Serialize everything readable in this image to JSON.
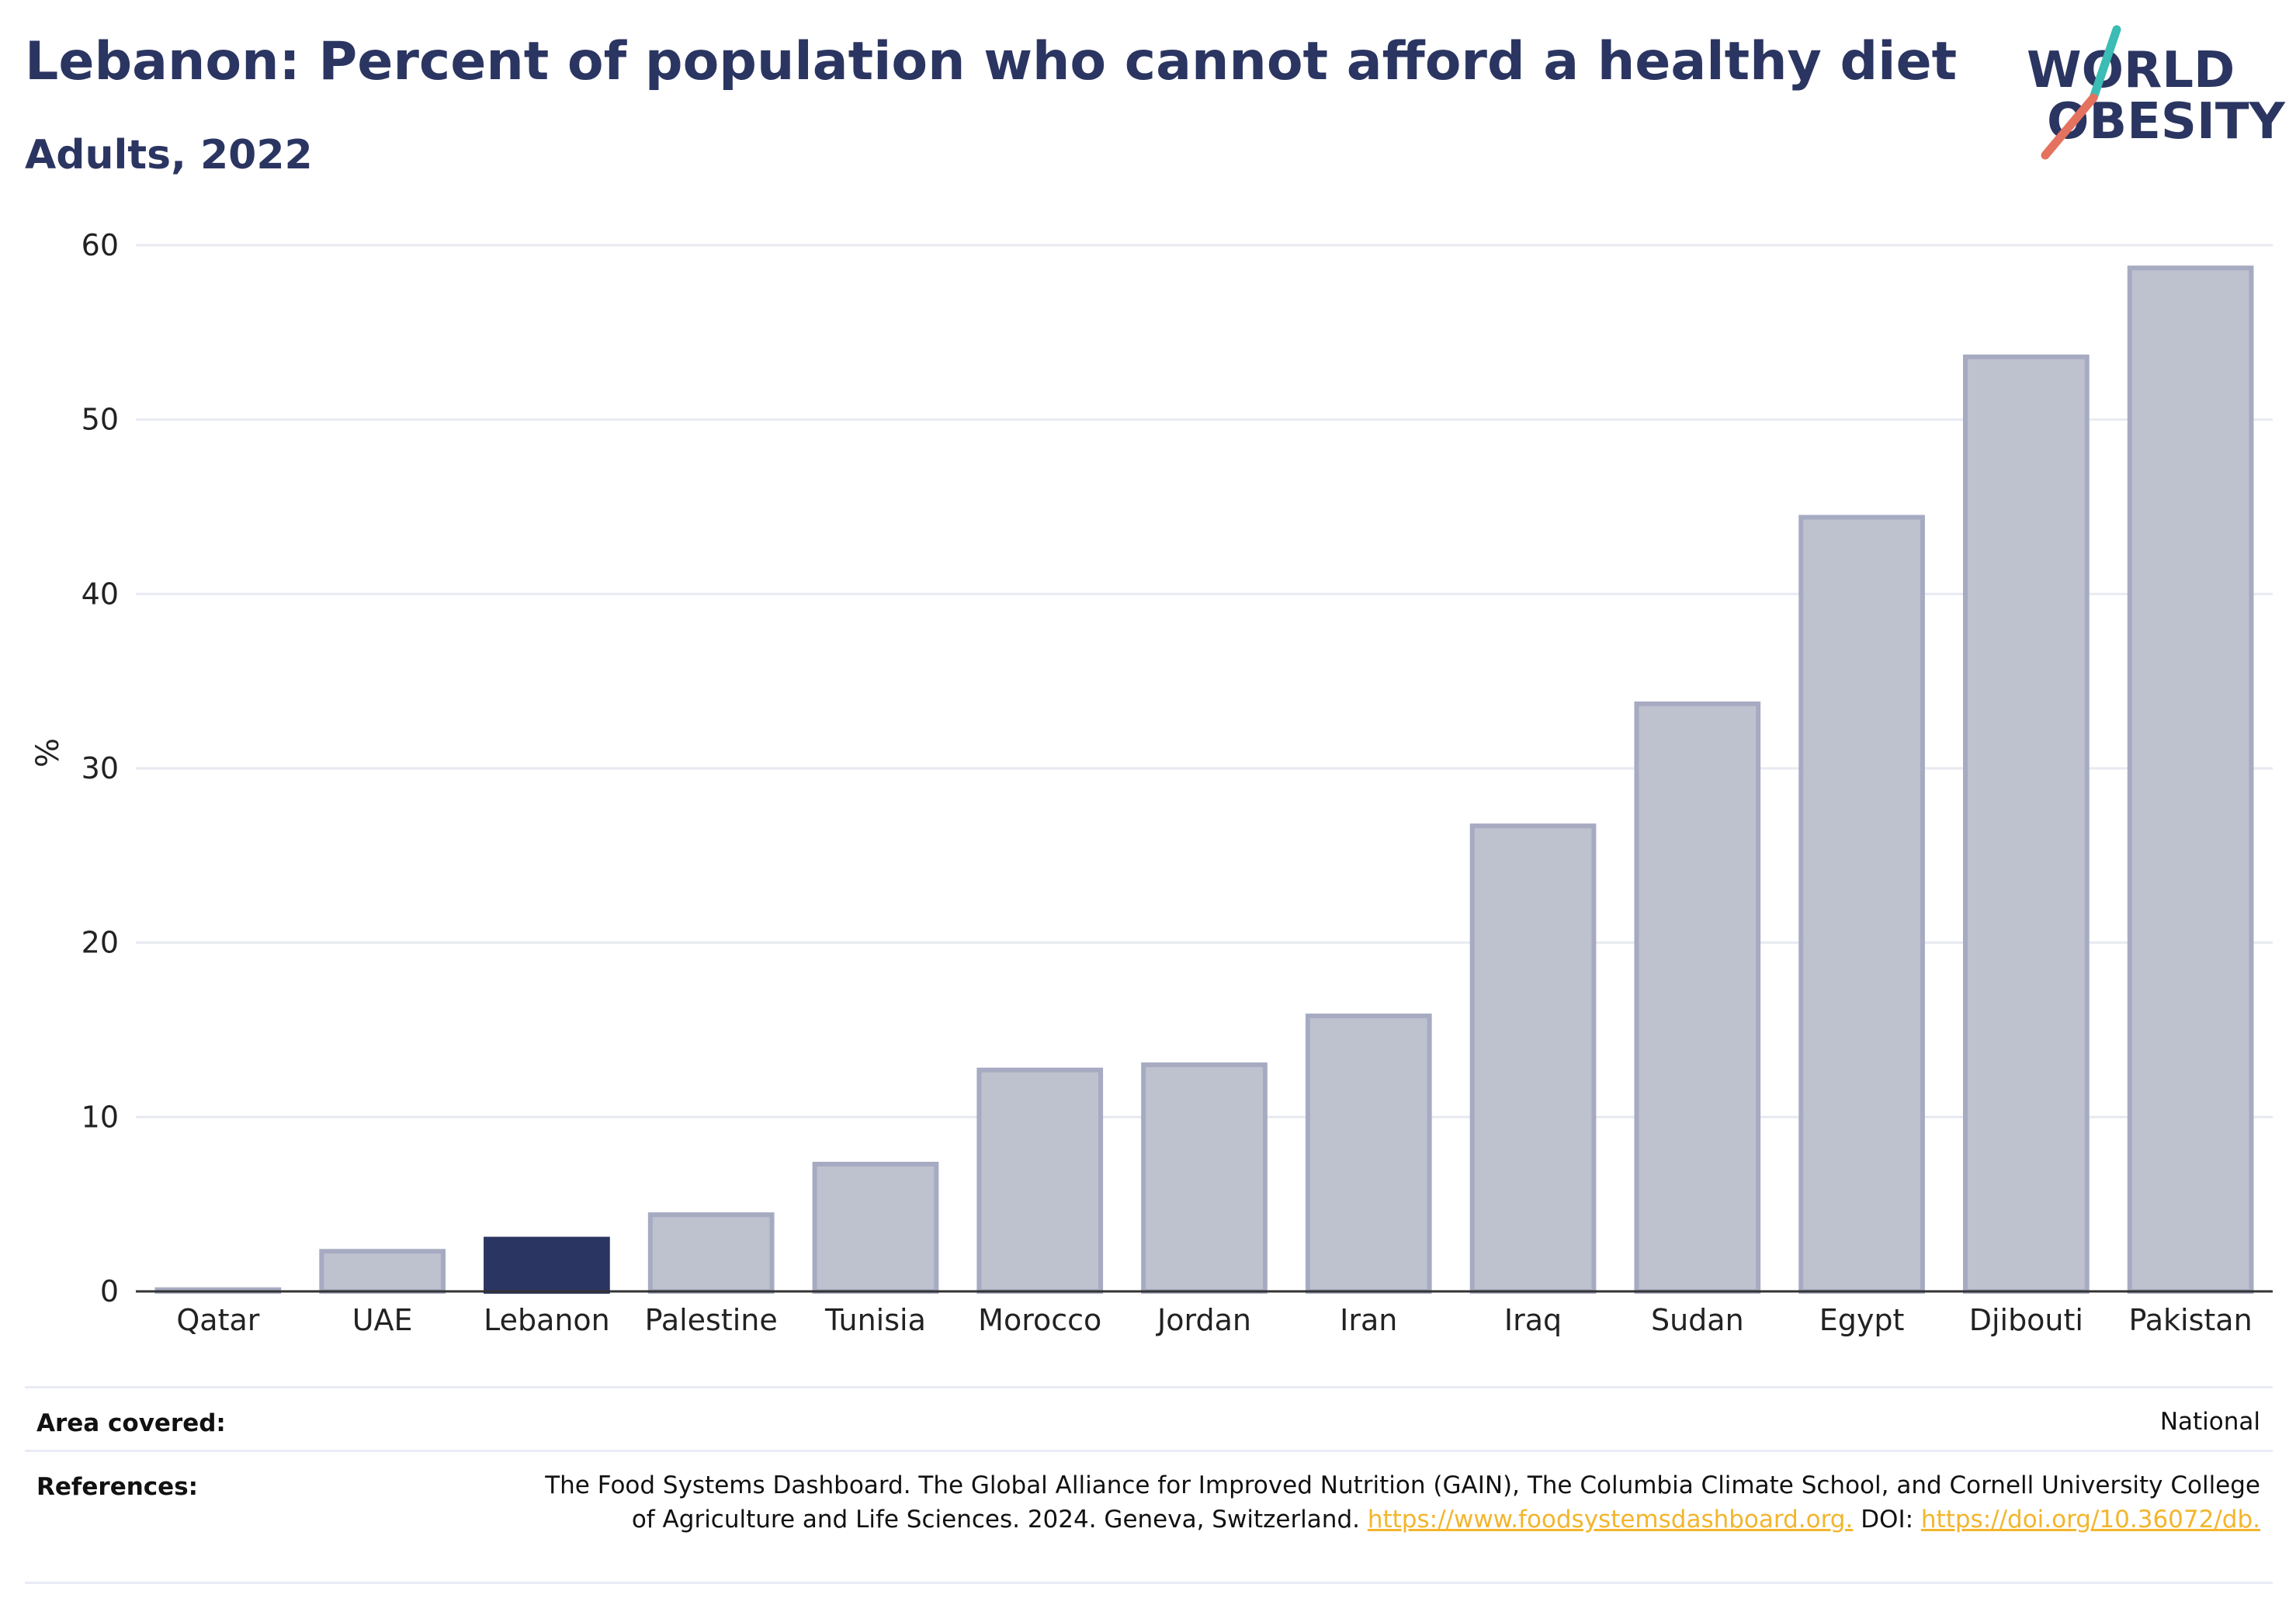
{
  "header": {
    "title": "Lebanon: Percent of population who cannot afford a healthy diet",
    "subtitle": "Adults, 2022"
  },
  "logo": {
    "line1": "WORLD",
    "line2": "OBESITY",
    "colors": {
      "text": "#2b3561",
      "slash_top": "#3bbcb4",
      "slash_bottom": "#e4725f"
    }
  },
  "chart_data": {
    "type": "bar",
    "categories": [
      "Qatar",
      "UAE",
      "Lebanon",
      "Palestine",
      "Tunisia",
      "Morocco",
      "Jordan",
      "Iran",
      "Iraq",
      "Sudan",
      "Egypt",
      "Djibouti",
      "Pakistan"
    ],
    "values": [
      0.1,
      2.3,
      3.0,
      4.4,
      7.3,
      12.7,
      13.0,
      15.8,
      26.7,
      33.7,
      44.4,
      53.6,
      58.7
    ],
    "highlight": "Lebanon",
    "ylabel": "%",
    "ylim": [
      0,
      60
    ],
    "yticks": [
      0,
      10,
      20,
      30,
      40,
      50,
      60
    ],
    "grid": true,
    "colors": {
      "bar": "#bec1ce",
      "bar_outline": "#a6abc2",
      "highlight": "#2b3561",
      "grid": "#e8eaf2",
      "axis": "#333333"
    }
  },
  "footer": {
    "area_label": "Area covered:",
    "area_value": "National",
    "references_label": "References:",
    "references_text": "The Food Systems Dashboard. The Global Alliance for Improved Nutrition (GAIN), The Columbia Climate School, and Cornell University College of Agriculture and Life Sciences. 2024. Geneva, Switzerland.",
    "references_link": "https://www.foodsystemsdashboard.org.",
    "doi_label": "DOI:",
    "doi_link": "https://doi.org/10.36072/db."
  }
}
